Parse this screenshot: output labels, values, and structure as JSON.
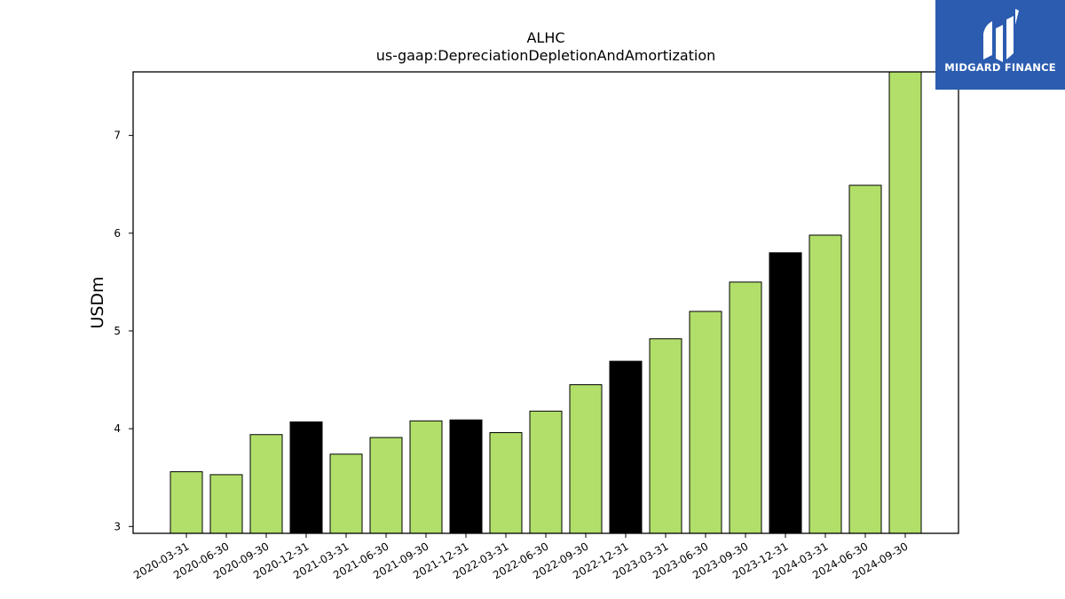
{
  "chart_data": {
    "type": "bar",
    "title": "ALHC",
    "subtitle": "us-gaap:DepreciationDepletionAndAmortization",
    "xlabel": "",
    "ylabel": "USDm",
    "ylim": [
      2.93,
      7.65
    ],
    "yticks": [
      3,
      4,
      5,
      6,
      7
    ],
    "grid": false,
    "categories": [
      "2020-03-31",
      "2020-06-30",
      "2020-09-30",
      "2020-12-31",
      "2021-03-31",
      "2021-06-30",
      "2021-09-30",
      "2021-12-31",
      "2022-03-31",
      "2022-06-30",
      "2022-09-30",
      "2022-12-31",
      "2023-03-31",
      "2023-06-30",
      "2023-09-30",
      "2023-12-31",
      "2024-03-31",
      "2024-06-30",
      "2024-09-30"
    ],
    "values": [
      3.56,
      3.53,
      3.94,
      4.07,
      3.74,
      3.91,
      4.08,
      4.09,
      3.96,
      4.18,
      4.45,
      4.69,
      4.92,
      5.2,
      5.5,
      5.8,
      5.98,
      6.49,
      7.65
    ],
    "bar_colors": [
      "#b2df6a",
      "#b2df6a",
      "#b2df6a",
      "#000000",
      "#b2df6a",
      "#b2df6a",
      "#b2df6a",
      "#000000",
      "#b2df6a",
      "#b2df6a",
      "#b2df6a",
      "#000000",
      "#b2df6a",
      "#b2df6a",
      "#b2df6a",
      "#000000",
      "#b2df6a",
      "#b2df6a",
      "#b2df6a"
    ]
  },
  "logo": {
    "text": "MIDGARD FINANCE",
    "background": "#2b5cb0"
  }
}
